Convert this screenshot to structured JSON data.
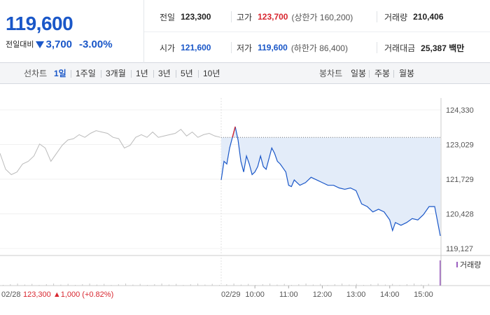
{
  "summary": {
    "price": "119,600",
    "change_label": "전일대비",
    "change_value": "3,700",
    "change_pct": "-3.00%",
    "prev_close_label": "전일",
    "prev_close": "123,300",
    "high_label": "고가",
    "high": "123,700",
    "upper_limit": "(상한가 160,200)",
    "volume_label": "거래량",
    "volume": "210,406",
    "open_label": "시가",
    "open": "121,600",
    "low_label": "저가",
    "low": "119,600",
    "lower_limit": "(하한가 86,400)",
    "amount_label": "거래대금",
    "amount": "25,387 백만",
    "colors": {
      "down": "#1a57c8",
      "up": "#d8262f"
    }
  },
  "tabs": {
    "line_label": "선차트",
    "line_items": [
      "1일",
      "1주일",
      "3개월",
      "1년",
      "3년",
      "5년",
      "10년"
    ],
    "active": "1일",
    "candle_label": "봉차트",
    "candle_items": [
      "일봉",
      "주봉",
      "월봉"
    ]
  },
  "chart_data": {
    "type": "line",
    "y_ticks": [
      "124,330",
      "123,029",
      "121,729",
      "120,428",
      "119,127"
    ],
    "y_range": [
      119127,
      124330
    ],
    "x_ticks": [
      "10:00",
      "11:00",
      "12:00",
      "13:00",
      "14:00",
      "15:00"
    ],
    "reference_value": 123300,
    "volume_label": "거래량",
    "series": [
      {
        "date": "02/28",
        "color": "#bbbbbb",
        "x": [
          "09:00",
          "09:10",
          "09:20",
          "09:30",
          "09:40",
          "09:50",
          "10:00",
          "10:10",
          "10:20",
          "10:30",
          "10:40",
          "10:50",
          "11:00",
          "11:10",
          "11:20",
          "11:30",
          "11:40",
          "11:50",
          "12:00",
          "12:10",
          "12:20",
          "12:30",
          "12:40",
          "12:50",
          "13:00",
          "13:10",
          "13:20",
          "13:30",
          "13:40",
          "13:50",
          "14:00",
          "14:10",
          "14:20",
          "14:30",
          "14:40",
          "14:50",
          "15:00",
          "15:10",
          "15:20",
          "15:30"
        ],
        "y": [
          122700,
          122100,
          121900,
          122000,
          122300,
          122400,
          122600,
          123050,
          122900,
          122400,
          122700,
          123000,
          123200,
          123250,
          123400,
          123300,
          123450,
          123550,
          123500,
          123450,
          123300,
          123250,
          122900,
          123000,
          123300,
          123400,
          123300,
          123500,
          123300,
          123350,
          123400,
          123450,
          123600,
          123350,
          123500,
          123300,
          123400,
          123450,
          123350,
          123300
        ]
      },
      {
        "date": "02/29",
        "color": "#1a57c8",
        "x": [
          "09:00",
          "09:05",
          "09:10",
          "09:15",
          "09:20",
          "09:25",
          "09:30",
          "09:35",
          "09:40",
          "09:45",
          "09:50",
          "09:55",
          "10:00",
          "10:05",
          "10:10",
          "10:15",
          "10:20",
          "10:25",
          "10:30",
          "10:35",
          "10:40",
          "10:45",
          "10:50",
          "10:55",
          "11:00",
          "11:05",
          "11:10",
          "11:15",
          "11:20",
          "11:30",
          "11:40",
          "11:50",
          "12:00",
          "12:10",
          "12:20",
          "12:30",
          "12:40",
          "12:50",
          "13:00",
          "13:10",
          "13:20",
          "13:30",
          "13:40",
          "13:50",
          "14:00",
          "14:05",
          "14:10",
          "14:20",
          "14:30",
          "14:40",
          "14:50",
          "15:00",
          "15:10",
          "15:20",
          "15:30"
        ],
        "y": [
          121700,
          122400,
          122300,
          122900,
          123300,
          123700,
          123200,
          122400,
          122000,
          122600,
          122300,
          121900,
          122000,
          122200,
          122600,
          122200,
          122100,
          122500,
          122900,
          122700,
          122400,
          122300,
          122150,
          122000,
          121500,
          121450,
          121700,
          121600,
          121500,
          121600,
          121800,
          121700,
          121600,
          121500,
          121500,
          121400,
          121350,
          121400,
          121300,
          120800,
          120700,
          120500,
          120600,
          120500,
          120200,
          119800,
          120100,
          120000,
          120100,
          120250,
          120200,
          120400,
          120700,
          120700,
          119600
        ]
      }
    ],
    "prev_close_note": "123,300 ▲1,000 (+0.82%)"
  }
}
